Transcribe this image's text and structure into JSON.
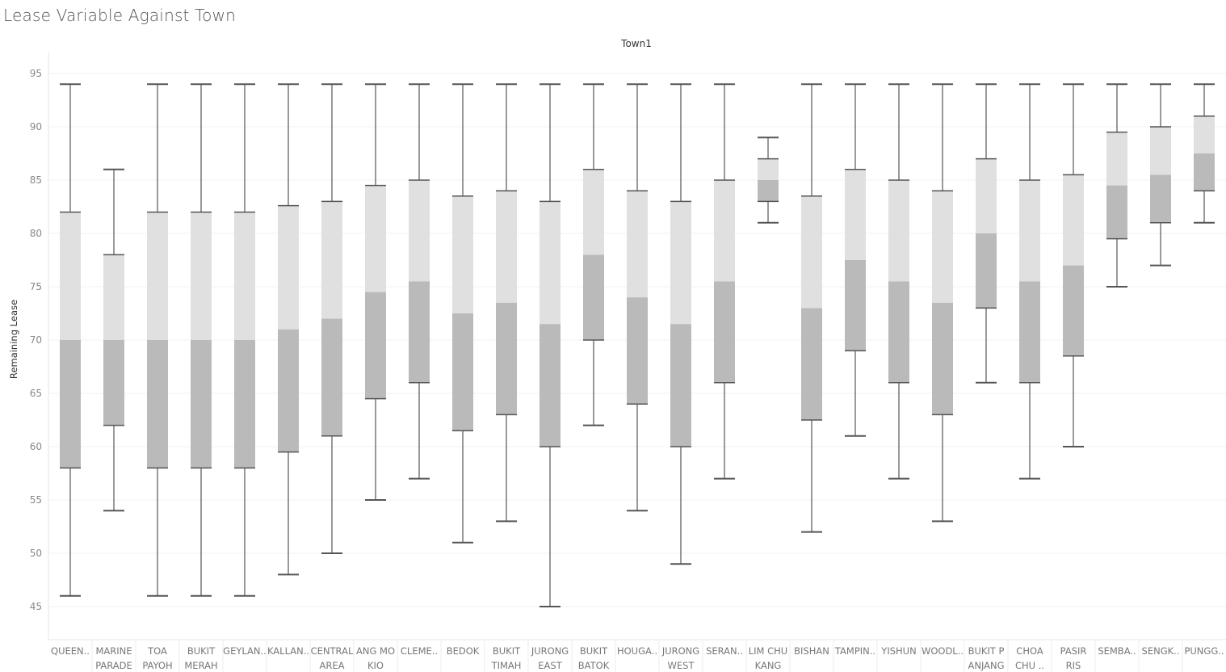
{
  "title": "Lease Variable Against Town",
  "chart_data": {
    "type": "boxplot",
    "title": "Lease Variable Against Town",
    "column_header": "Town1",
    "ylabel": "Remaining Lease",
    "ylim": [
      43,
      97
    ],
    "yticks": [
      45,
      50,
      55,
      60,
      65,
      70,
      75,
      80,
      85,
      90,
      95
    ],
    "grid": true,
    "colors": {
      "upper_box": "#e0e0e0",
      "lower_box": "#bababa",
      "whisker": "#555555"
    },
    "categories": [
      {
        "label": [
          "QUEEN.."
        ],
        "min": 46,
        "q1": 58,
        "median": 70,
        "q3": 82,
        "max": 94
      },
      {
        "label": [
          "MARINE",
          "PARADE"
        ],
        "min": 54,
        "q1": 62,
        "median": 70,
        "q3": 78,
        "max": 86
      },
      {
        "label": [
          "TOA",
          "PAYOH"
        ],
        "min": 46,
        "q1": 58,
        "median": 70,
        "q3": 82,
        "max": 94
      },
      {
        "label": [
          "BUKIT",
          "MERAH"
        ],
        "min": 46,
        "q1": 58,
        "median": 70,
        "q3": 82,
        "max": 94
      },
      {
        "label": [
          "GEYLAN.."
        ],
        "min": 46,
        "q1": 58,
        "median": 70,
        "q3": 82,
        "max": 94
      },
      {
        "label": [
          "KALLAN.."
        ],
        "min": 48,
        "q1": 59.5,
        "median": 71,
        "q3": 82.6,
        "max": 94
      },
      {
        "label": [
          "CENTRAL",
          "AREA"
        ],
        "min": 50,
        "q1": 61,
        "median": 72,
        "q3": 83,
        "max": 94
      },
      {
        "label": [
          "ANG MO",
          "KIO"
        ],
        "min": 55,
        "q1": 64.5,
        "median": 74.5,
        "q3": 84.5,
        "max": 94
      },
      {
        "label": [
          "CLEME.."
        ],
        "min": 57,
        "q1": 66,
        "median": 75.5,
        "q3": 85,
        "max": 94
      },
      {
        "label": [
          "BEDOK"
        ],
        "min": 51,
        "q1": 61.5,
        "median": 72.5,
        "q3": 83.5,
        "max": 94
      },
      {
        "label": [
          "BUKIT",
          "TIMAH"
        ],
        "min": 53,
        "q1": 63,
        "median": 73.5,
        "q3": 84,
        "max": 94
      },
      {
        "label": [
          "JURONG",
          "EAST"
        ],
        "min": 45,
        "q1": 60,
        "median": 71.5,
        "q3": 83,
        "max": 94
      },
      {
        "label": [
          "BUKIT",
          "BATOK"
        ],
        "min": 62,
        "q1": 70,
        "median": 78,
        "q3": 86,
        "max": 94
      },
      {
        "label": [
          "HOUGA.."
        ],
        "min": 54,
        "q1": 64,
        "median": 74,
        "q3": 84,
        "max": 94
      },
      {
        "label": [
          "JURONG",
          "WEST"
        ],
        "min": 49,
        "q1": 60,
        "median": 71.5,
        "q3": 83,
        "max": 94
      },
      {
        "label": [
          "SERAN.."
        ],
        "min": 57,
        "q1": 66,
        "median": 75.5,
        "q3": 85,
        "max": 94
      },
      {
        "label": [
          "LIM CHU",
          "KANG"
        ],
        "min": 81,
        "q1": 83,
        "median": 85,
        "q3": 87,
        "max": 89
      },
      {
        "label": [
          "BISHAN"
        ],
        "min": 52,
        "q1": 62.5,
        "median": 73,
        "q3": 83.5,
        "max": 94
      },
      {
        "label": [
          "TAMPIN.."
        ],
        "min": 61,
        "q1": 69,
        "median": 77.5,
        "q3": 86,
        "max": 94
      },
      {
        "label": [
          "YISHUN"
        ],
        "min": 57,
        "q1": 66,
        "median": 75.5,
        "q3": 85,
        "max": 94
      },
      {
        "label": [
          "WOODL.."
        ],
        "min": 53,
        "q1": 63,
        "median": 73.5,
        "q3": 84,
        "max": 94
      },
      {
        "label": [
          "BUKIT P",
          "ANJANG"
        ],
        "min": 66,
        "q1": 73,
        "median": 80,
        "q3": 87,
        "max": 94
      },
      {
        "label": [
          "CHOA",
          "CHU .."
        ],
        "min": 57,
        "q1": 66,
        "median": 75.5,
        "q3": 85,
        "max": 94
      },
      {
        "label": [
          "PASIR",
          "RIS"
        ],
        "min": 60,
        "q1": 68.5,
        "median": 77,
        "q3": 85.5,
        "max": 94
      },
      {
        "label": [
          "SEMBA.."
        ],
        "min": 75,
        "q1": 79.5,
        "median": 84.5,
        "q3": 89.5,
        "max": 94
      },
      {
        "label": [
          "SENGK.."
        ],
        "min": 77,
        "q1": 81,
        "median": 85.5,
        "q3": 90,
        "max": 94
      },
      {
        "label": [
          "PUNGG.."
        ],
        "min": 81,
        "q1": 84,
        "median": 87.5,
        "q3": 91,
        "max": 94
      }
    ]
  }
}
